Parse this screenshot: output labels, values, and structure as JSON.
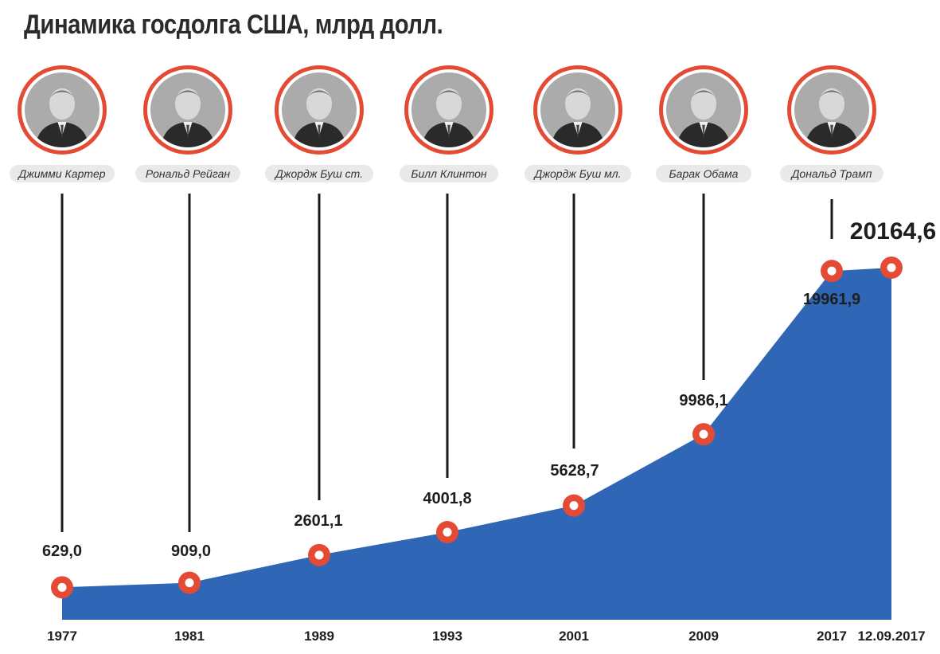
{
  "title": "Динамика госдолга США, млрд долл.",
  "colors": {
    "area": "#2f66b5",
    "marker": "#e44b35",
    "stem": "#1a1a1a",
    "pill": "#e9e9e9"
  },
  "presidents": [
    {
      "name": "Джимми Картер",
      "icon": "portrait-icon"
    },
    {
      "name": "Рональд Рейган",
      "icon": "portrait-icon"
    },
    {
      "name": "Джордж Буш ст.",
      "icon": "portrait-icon"
    },
    {
      "name": "Билл Клинтон",
      "icon": "portrait-icon"
    },
    {
      "name": "Джордж Буш мл.",
      "icon": "portrait-icon"
    },
    {
      "name": "Барак Обама",
      "icon": "portrait-icon"
    },
    {
      "name": "Дональд Трамп",
      "icon": "portrait-icon"
    }
  ],
  "chart_data": {
    "type": "area",
    "title": "Динамика госдолга США, млрд долл.",
    "categories": [
      "1977",
      "1981",
      "1989",
      "1993",
      "2001",
      "2009",
      "2017",
      "12.09.2017"
    ],
    "values": [
      629.0,
      909.0,
      2601.1,
      4001.8,
      5628.7,
      9986.1,
      19961.9,
      20164.6
    ],
    "value_labels": [
      "629,0",
      "909,0",
      "2601,1",
      "4001,8",
      "5628,7",
      "9986,1",
      "19961,9",
      "20164,6"
    ],
    "xlabel": "",
    "ylabel": "",
    "grid": false,
    "legend": "none"
  }
}
